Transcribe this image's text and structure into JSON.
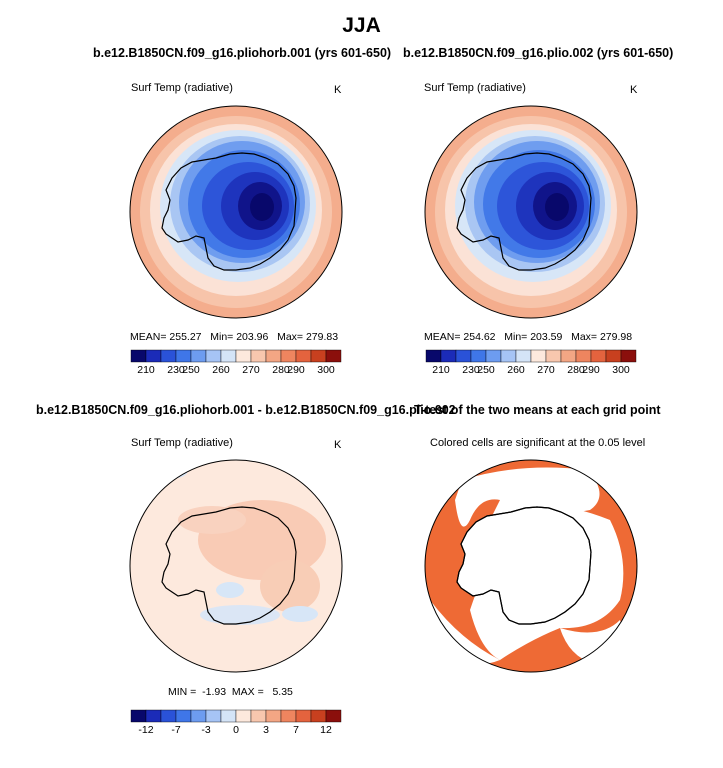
{
  "figure_title": "JJA",
  "panels": {
    "top_left": {
      "title": "b.e12.B1850CN.f09_g16.pliohorb.001 (yrs 601-650)",
      "variable": "Surf Temp (radiative)",
      "units": "K",
      "stats": "MEAN= 255.27   Min= 203.96   Max= 279.83"
    },
    "top_right": {
      "title": "b.e12.B1850CN.f09_g16.plio.002 (yrs 601-650)",
      "variable": "Surf Temp (radiative)",
      "units": "K",
      "stats": "MEAN= 254.62   Min= 203.59   Max= 279.98"
    },
    "bottom_left": {
      "title": "b.e12.B1850CN.f09_g16.pliohorb.001 - b.e12.B1850CN.f09_g16.plio.002",
      "variable": "Surf Temp (radiative)",
      "units": "K",
      "stats": "MIN =  -1.93  MAX =   5.35"
    },
    "bottom_right": {
      "title": "T-test of the two means at each grid point",
      "subtitle": "Colored cells are significant at the 0.05 level"
    }
  },
  "colorbars": {
    "abs": {
      "labels": [
        "210",
        "230",
        "250",
        "260",
        "270",
        "280",
        "290",
        "300"
      ],
      "colors": [
        "#08086b",
        "#1b2bb8",
        "#2a52d8",
        "#3f76e8",
        "#6d9cf0",
        "#a6c4f5",
        "#d4e4f7",
        "#fde9dd",
        "#f8c7ae",
        "#f3a684",
        "#ee855f",
        "#e4633e",
        "#c8401f",
        "#8b0f0c"
      ]
    },
    "diff": {
      "labels": [
        "-12",
        "-7",
        "-3",
        "0",
        "3",
        "7",
        "12"
      ],
      "colors": [
        "#08086b",
        "#1b2bb8",
        "#2a52d8",
        "#3f76e8",
        "#6d9cf0",
        "#a6c4f5",
        "#d4e4f7",
        "#fde9dd",
        "#f8c7ae",
        "#f3a684",
        "#ee855f",
        "#e4633e",
        "#c8401f",
        "#8b0f0c"
      ]
    }
  },
  "significance_color": "#ee6a35"
}
